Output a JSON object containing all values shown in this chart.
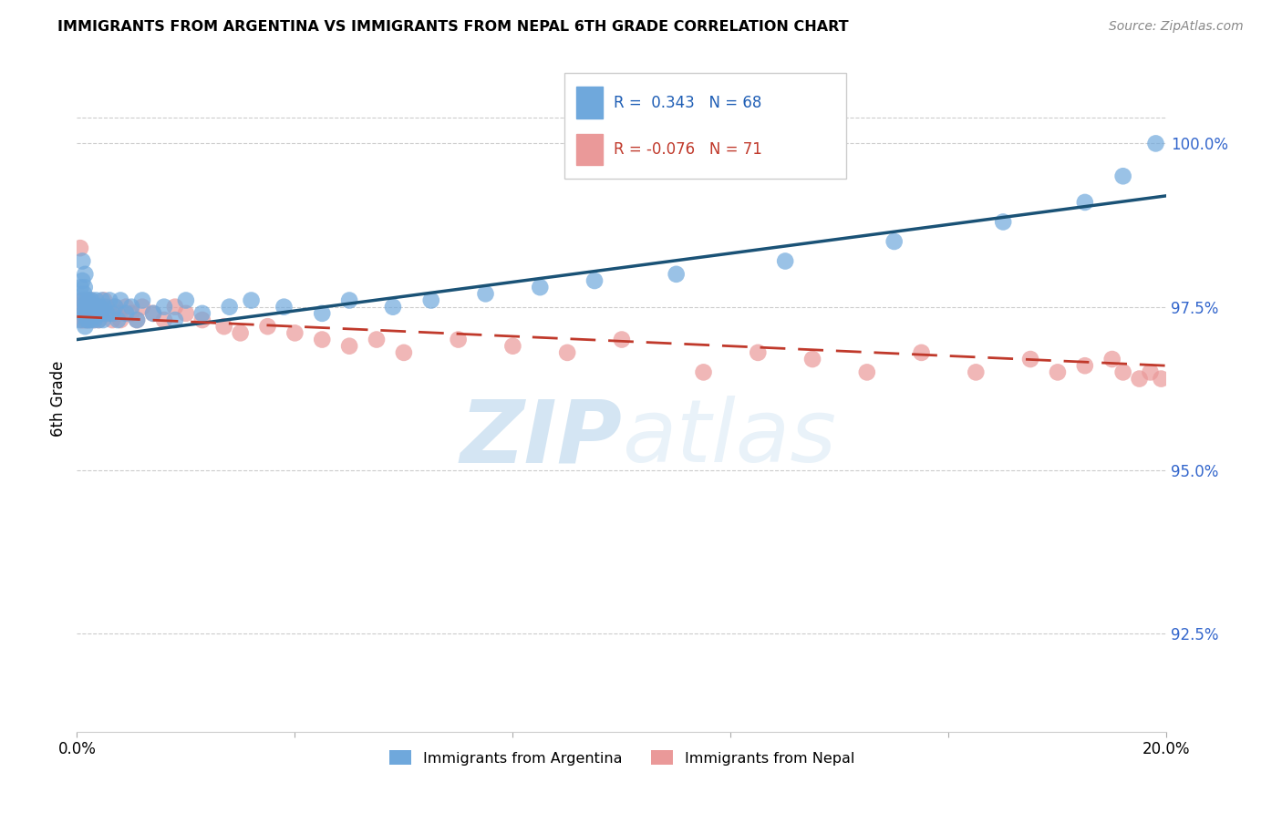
{
  "title": "IMMIGRANTS FROM ARGENTINA VS IMMIGRANTS FROM NEPAL 6TH GRADE CORRELATION CHART",
  "source": "Source: ZipAtlas.com",
  "ylabel": "6th Grade",
  "yticks": [
    92.5,
    95.0,
    97.5,
    100.0
  ],
  "ytick_labels": [
    "92.5%",
    "95.0%",
    "97.5%",
    "100.0%"
  ],
  "xmin": 0.0,
  "xmax": 20.0,
  "ymin": 91.0,
  "ymax": 101.2,
  "R_argentina": 0.343,
  "N_argentina": 68,
  "R_nepal": -0.076,
  "N_nepal": 71,
  "color_argentina": "#6fa8dc",
  "color_nepal": "#ea9999",
  "trendline_argentina_color": "#1a5276",
  "trendline_nepal_color": "#c0392b",
  "watermark_zip": "ZIP",
  "watermark_atlas": "atlas",
  "legend_label_argentina": "Immigrants from Argentina",
  "legend_label_nepal": "Immigrants from Nepal",
  "argentina_x": [
    0.05,
    0.07,
    0.08,
    0.1,
    0.1,
    0.11,
    0.12,
    0.13,
    0.14,
    0.15,
    0.15,
    0.16,
    0.17,
    0.18,
    0.19,
    0.2,
    0.21,
    0.22,
    0.23,
    0.24,
    0.25,
    0.26,
    0.27,
    0.28,
    0.3,
    0.32,
    0.34,
    0.35,
    0.37,
    0.38,
    0.4,
    0.42,
    0.44,
    0.46,
    0.48,
    0.5,
    0.55,
    0.6,
    0.65,
    0.7,
    0.75,
    0.8,
    0.9,
    1.0,
    1.1,
    1.2,
    1.4,
    1.6,
    1.8,
    2.0,
    2.3,
    2.8,
    3.2,
    3.8,
    4.5,
    5.0,
    5.8,
    6.5,
    7.5,
    8.5,
    9.5,
    11.0,
    13.0,
    15.0,
    17.0,
    18.5,
    19.2,
    19.8
  ],
  "argentina_y": [
    97.3,
    97.8,
    97.5,
    97.9,
    98.2,
    97.6,
    97.4,
    97.7,
    97.8,
    98.0,
    97.2,
    97.5,
    97.3,
    97.6,
    97.4,
    97.5,
    97.3,
    97.6,
    97.4,
    97.5,
    97.3,
    97.4,
    97.6,
    97.5,
    97.4,
    97.3,
    97.5,
    97.6,
    97.4,
    97.5,
    97.3,
    97.5,
    97.4,
    97.6,
    97.3,
    97.5,
    97.4,
    97.6,
    97.4,
    97.5,
    97.3,
    97.6,
    97.4,
    97.5,
    97.3,
    97.6,
    97.4,
    97.5,
    97.3,
    97.6,
    97.4,
    97.5,
    97.6,
    97.5,
    97.4,
    97.6,
    97.5,
    97.6,
    97.7,
    97.8,
    97.9,
    98.0,
    98.2,
    98.5,
    98.8,
    99.1,
    99.5,
    100.0
  ],
  "nepal_x": [
    0.04,
    0.06,
    0.08,
    0.09,
    0.1,
    0.11,
    0.12,
    0.13,
    0.14,
    0.15,
    0.16,
    0.17,
    0.18,
    0.19,
    0.2,
    0.21,
    0.22,
    0.23,
    0.24,
    0.25,
    0.27,
    0.29,
    0.31,
    0.33,
    0.35,
    0.37,
    0.4,
    0.43,
    0.46,
    0.5,
    0.55,
    0.6,
    0.65,
    0.7,
    0.75,
    0.8,
    0.9,
    1.0,
    1.1,
    1.2,
    1.4,
    1.6,
    1.8,
    2.0,
    2.3,
    2.7,
    3.0,
    3.5,
    4.0,
    4.5,
    5.0,
    5.5,
    6.0,
    7.0,
    8.0,
    9.0,
    10.0,
    11.5,
    12.5,
    13.5,
    14.5,
    15.5,
    16.5,
    17.5,
    18.0,
    18.5,
    19.0,
    19.2,
    19.5,
    19.7,
    19.9
  ],
  "nepal_y": [
    97.5,
    98.4,
    97.6,
    97.3,
    97.4,
    97.5,
    97.3,
    97.4,
    97.6,
    97.5,
    97.4,
    97.3,
    97.5,
    97.4,
    97.6,
    97.5,
    97.3,
    97.4,
    97.5,
    97.6,
    97.4,
    97.5,
    97.3,
    97.4,
    97.5,
    97.4,
    97.3,
    97.5,
    97.4,
    97.6,
    97.5,
    97.4,
    97.3,
    97.5,
    97.4,
    97.3,
    97.5,
    97.4,
    97.3,
    97.5,
    97.4,
    97.3,
    97.5,
    97.4,
    97.3,
    97.2,
    97.1,
    97.2,
    97.1,
    97.0,
    96.9,
    97.0,
    96.8,
    97.0,
    96.9,
    96.8,
    97.0,
    96.5,
    96.8,
    96.7,
    96.5,
    96.8,
    96.5,
    96.7,
    96.5,
    96.6,
    96.7,
    96.5,
    96.4,
    96.5,
    96.4
  ],
  "trendline_arg_x0": 0.0,
  "trendline_arg_x1": 20.0,
  "trendline_arg_y0": 97.0,
  "trendline_arg_y1": 99.2,
  "trendline_nep_x0": 0.0,
  "trendline_nep_x1": 20.0,
  "trendline_nep_y0": 97.35,
  "trendline_nep_y1": 96.6
}
